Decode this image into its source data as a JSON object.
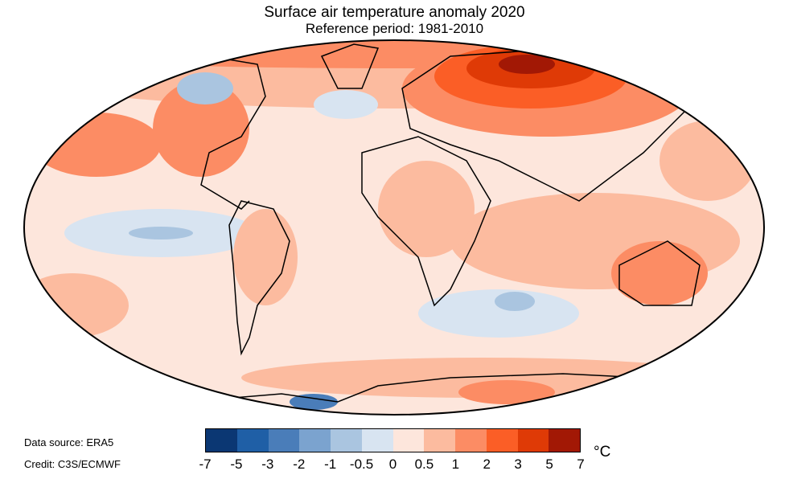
{
  "title": "Surface air temperature anomaly 2020",
  "subtitle": "Reference period: 1981-2010",
  "data_source": "Data source: ERA5",
  "credit": "Credit: C3S/ECMWF",
  "colorbar": {
    "ticks": [
      "-7",
      "-5",
      "-3",
      "-2",
      "-1",
      "-0.5",
      "0",
      "0.5",
      "1",
      "2",
      "3",
      "5",
      "7"
    ],
    "colors": [
      "#0b3773",
      "#1f5fa6",
      "#4a7db9",
      "#7ba3cf",
      "#aac5e0",
      "#d8e4f1",
      "#fde6dc",
      "#fcbb9f",
      "#fc8c64",
      "#fb5e26",
      "#df3a06",
      "#a21805"
    ],
    "unit": "°C"
  }
}
